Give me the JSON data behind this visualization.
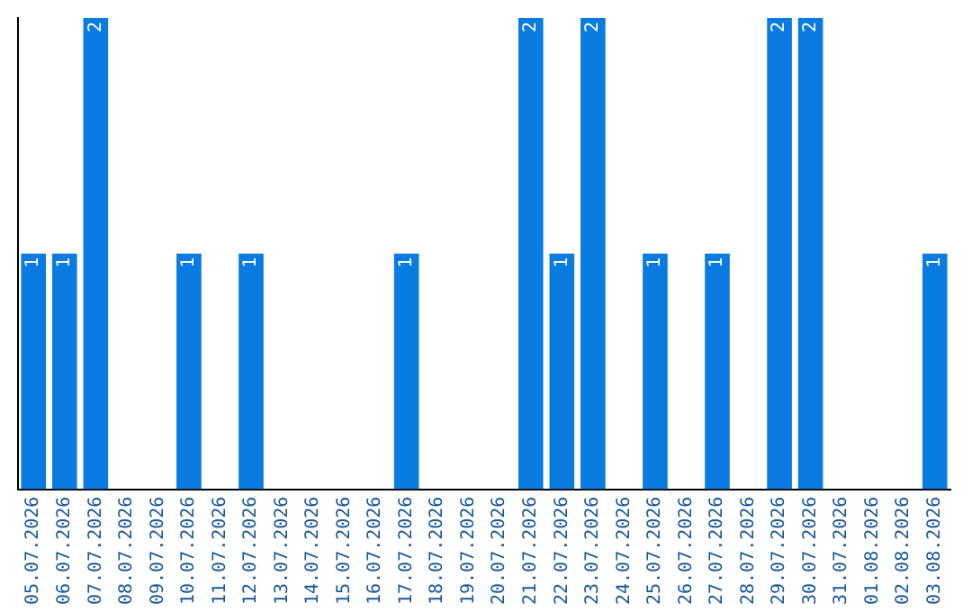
{
  "chart_data": {
    "type": "bar",
    "categories": [
      "05.07.2026",
      "06.07.2026",
      "07.07.2026",
      "08.07.2026",
      "09.07.2026",
      "10.07.2026",
      "11.07.2026",
      "12.07.2026",
      "13.07.2026",
      "14.07.2026",
      "15.07.2026",
      "16.07.2026",
      "17.07.2026",
      "18.07.2026",
      "19.07.2026",
      "20.07.2026",
      "21.07.2026",
      "22.07.2026",
      "23.07.2026",
      "24.07.2026",
      "25.07.2026",
      "26.07.2026",
      "27.07.2026",
      "28.07.2026",
      "29.07.2026",
      "30.07.2026",
      "31.07.2026",
      "01.08.2026",
      "02.08.2026",
      "03.08.2026"
    ],
    "values": [
      1,
      1,
      2,
      0,
      0,
      1,
      0,
      1,
      0,
      0,
      0,
      0,
      1,
      0,
      0,
      0,
      2,
      1,
      2,
      0,
      1,
      0,
      1,
      0,
      2,
      2,
      0,
      0,
      0,
      1
    ],
    "value_labels": [
      "1",
      "1",
      "2",
      null,
      null,
      "1",
      null,
      "1",
      null,
      null,
      null,
      null,
      "1",
      null,
      null,
      null,
      "2",
      "1",
      "2",
      null,
      "1",
      null,
      "1",
      null,
      "2",
      "2",
      null,
      null,
      null,
      "1"
    ],
    "color": "#0a7be0",
    "grid": false,
    "legend": false,
    "tick_labels": "x"
  }
}
